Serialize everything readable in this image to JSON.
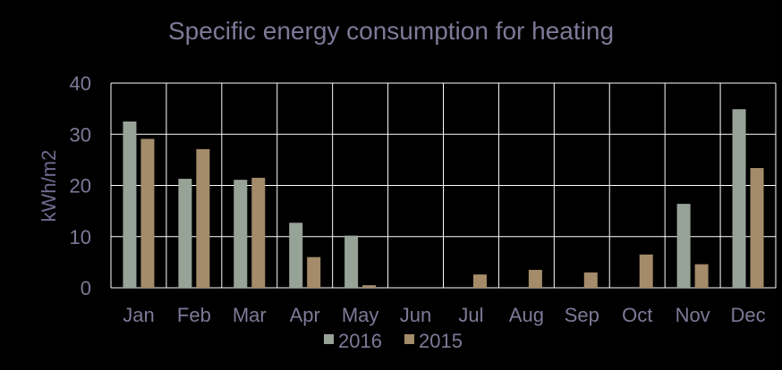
{
  "chart_data": {
    "type": "bar",
    "title": "Specific energy consumption for heating",
    "xlabel": "",
    "ylabel": "kWh/m2",
    "ylim": [
      0,
      40
    ],
    "yticks": [
      0,
      10,
      20,
      30,
      40
    ],
    "categories": [
      "Jan",
      "Feb",
      "Mar",
      "Apr",
      "May",
      "Jun",
      "Jul",
      "Aug",
      "Sep",
      "Oct",
      "Nov",
      "Dec"
    ],
    "series": [
      {
        "name": "2016",
        "color": "#98a398",
        "values": [
          32.5,
          21.3,
          21.1,
          12.7,
          10.2,
          0,
          0,
          0,
          0,
          0,
          16.4,
          34.9
        ]
      },
      {
        "name": "2015",
        "color": "#a48b6a",
        "values": [
          29.1,
          27.1,
          21.5,
          6.0,
          0.5,
          0,
          2.6,
          3.5,
          3.0,
          6.5,
          4.6,
          23.4
        ]
      }
    ],
    "grid": true,
    "legend_position": "bottom",
    "colors": {
      "background": "#000000",
      "gridline": "#ffffff",
      "text": "#7c7a97"
    }
  }
}
